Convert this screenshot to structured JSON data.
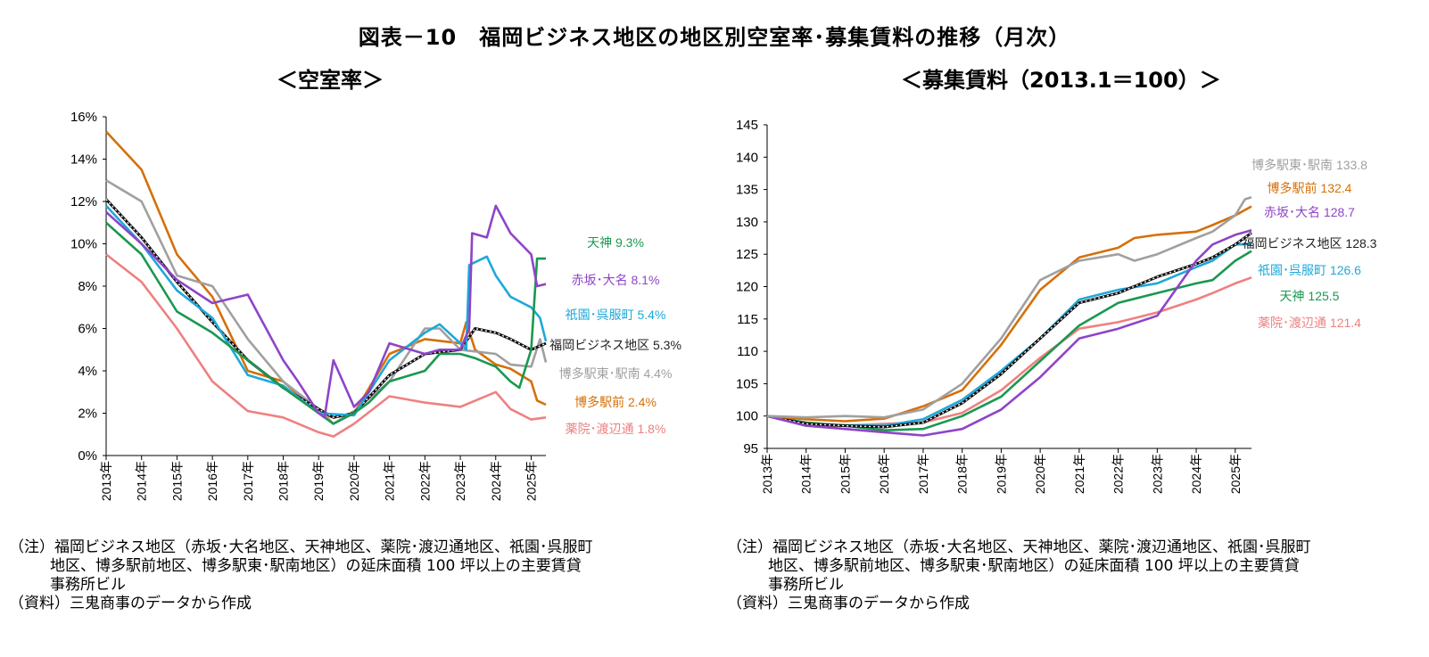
{
  "title": "図表－10　福岡ビジネス地区の地区別空室率･募集賃料の推移（月次）",
  "colors": {
    "tenjin": "#1a9850",
    "akasaka": "#8e44c8",
    "gion": "#1fa8d8",
    "fukuoka": "#111111",
    "hakataeki_higashi": "#a0a0a0",
    "hakataekimae": "#d4700a",
    "yakuin": "#ef8080",
    "grid": "#d9d9d9",
    "axis": "#000000"
  },
  "charts": [
    {
      "id": "vacancy",
      "subtitle": "＜空室率＞",
      "tick_labels": [
        "0%",
        "2%",
        "4%",
        "6%",
        "8%",
        "10%",
        "12%",
        "14%",
        "16%"
      ],
      "year_labels": [
        "2013年",
        "2014年",
        "2015年",
        "2016年",
        "2017年",
        "2018年",
        "2019年",
        "2020年",
        "2021年",
        "2022年",
        "2023年",
        "2024年",
        "2025年"
      ],
      "labels": [
        {
          "key": "tenjin",
          "text": "天神 9.3%"
        },
        {
          "key": "akasaka",
          "text": "赤坂･大名 8.1%"
        },
        {
          "key": "gion",
          "text": "祇園･呉服町 5.4%"
        },
        {
          "key": "fukuoka",
          "text": "福岡ビジネス地区 5.3%"
        },
        {
          "key": "hakataeki_higashi",
          "text": "博多駅東･駅南 4.4%"
        },
        {
          "key": "hakataekimae",
          "text": "博多駅前 2.4%"
        },
        {
          "key": "yakuin",
          "text": "薬院･渡辺通 1.8%"
        }
      ],
      "note_line1": "（注）福岡ビジネス地区（赤坂･大名地区、天神地区、薬院･渡辺通地区、祇園･呉服町",
      "note_line2": "地区、博多駅前地区、博多駅東･駅南地区）の延床面積 100 坪以上の主要賃貸",
      "note_line3": "事務所ビル",
      "source": "（資料）三鬼商事のデータから作成"
    },
    {
      "id": "rent",
      "subtitle": "＜募集賃料（2013.1＝100）＞",
      "tick_labels": [
        "95",
        "100",
        "105",
        "110",
        "115",
        "120",
        "125",
        "130",
        "135",
        "140",
        "145"
      ],
      "year_labels": [
        "2013年",
        "2014年",
        "2015年",
        "2016年",
        "2017年",
        "2018年",
        "2019年",
        "2020年",
        "2021年",
        "2022年",
        "2023年",
        "2024年",
        "2025年"
      ],
      "labels": [
        {
          "key": "hakataeki_higashi",
          "text": "博多駅東･駅南 133.8"
        },
        {
          "key": "hakataekimae",
          "text": "博多駅前 132.4"
        },
        {
          "key": "akasaka",
          "text": "赤坂･大名 128.7"
        },
        {
          "key": "fukuoka",
          "text": "福岡ビジネス地区 128.3"
        },
        {
          "key": "gion",
          "text": "祇園･呉服町 126.6"
        },
        {
          "key": "tenjin",
          "text": "天神 125.5"
        },
        {
          "key": "yakuin",
          "text": "薬院･渡辺通 121.4"
        }
      ],
      "note_line1": "（注）福岡ビジネス地区（赤坂･大名地区、天神地区、薬院･渡辺通地区、祇園･呉服町",
      "note_line2": "地区、博多駅前地区、博多駅東･駅南地区）の延床面積 100 坪以上の主要賃貸",
      "note_line3": "事務所ビル",
      "source": "（資料）三鬼商事のデータから作成"
    }
  ],
  "chart_data": [
    {
      "type": "line",
      "title": "＜空室率＞",
      "ylim": [
        0,
        16
      ],
      "y_unit": "%",
      "x_range": [
        "2013-01",
        "2025-06"
      ],
      "legend": "direct labels at right end of lines",
      "grid": false,
      "series": [
        {
          "name": "赤坂･大名",
          "key": "akasaka",
          "x": [
            "2013-01",
            "2014-01",
            "2015-01",
            "2016-01",
            "2017-01",
            "2018-01",
            "2018-06",
            "2019-01",
            "2019-03",
            "2019-06",
            "2020-01",
            "2020-06",
            "2021-01",
            "2022-01",
            "2022-06",
            "2023-01",
            "2023-04",
            "2023-05",
            "2023-10",
            "2024-01",
            "2024-06",
            "2025-01",
            "2025-03",
            "2025-06"
          ],
          "y": [
            11.5,
            10.0,
            8.3,
            7.2,
            7.6,
            4.5,
            3.5,
            2.0,
            1.8,
            4.5,
            2.3,
            3.0,
            5.3,
            4.8,
            5.0,
            5.0,
            6.0,
            10.5,
            10.3,
            11.8,
            10.5,
            9.5,
            8.0,
            8.1
          ]
        },
        {
          "name": "天神",
          "key": "tenjin",
          "x": [
            "2013-01",
            "2014-01",
            "2015-01",
            "2016-01",
            "2017-01",
            "2018-01",
            "2019-01",
            "2019-06",
            "2020-01",
            "2020-06",
            "2021-01",
            "2022-01",
            "2022-06",
            "2023-01",
            "2023-06",
            "2024-01",
            "2024-06",
            "2024-09",
            "2025-01",
            "2025-03",
            "2025-06"
          ],
          "y": [
            11.0,
            9.5,
            6.8,
            5.8,
            4.5,
            3.2,
            2.0,
            1.5,
            2.0,
            2.5,
            3.5,
            4.0,
            4.8,
            4.8,
            4.6,
            4.2,
            3.5,
            3.2,
            5.0,
            9.3,
            9.3
          ]
        },
        {
          "name": "祇園･呉服町",
          "key": "gion",
          "x": [
            "2013-01",
            "2014-01",
            "2015-01",
            "2016-01",
            "2017-01",
            "2018-01",
            "2019-01",
            "2020-01",
            "2021-01",
            "2022-01",
            "2022-06",
            "2023-01",
            "2023-03",
            "2023-04",
            "2023-10",
            "2024-01",
            "2024-06",
            "2025-01",
            "2025-04",
            "2025-06"
          ],
          "y": [
            11.8,
            10.0,
            7.8,
            6.5,
            3.8,
            3.3,
            2.0,
            1.9,
            4.5,
            5.8,
            6.2,
            5.3,
            5.0,
            9.0,
            9.4,
            8.5,
            7.5,
            7.0,
            6.5,
            5.4
          ]
        },
        {
          "name": "福岡ビジネス地区",
          "key": "fukuoka",
          "x": [
            "2013-01",
            "2014-01",
            "2015-01",
            "2016-01",
            "2017-01",
            "2018-01",
            "2019-01",
            "2019-06",
            "2020-01",
            "2021-01",
            "2022-01",
            "2023-01",
            "2023-06",
            "2024-01",
            "2024-06",
            "2025-01",
            "2025-06"
          ],
          "y": [
            12.1,
            10.3,
            8.2,
            6.3,
            4.5,
            3.2,
            2.2,
            1.8,
            2.0,
            3.8,
            4.8,
            5.0,
            6.0,
            5.8,
            5.5,
            5.0,
            5.3
          ]
        },
        {
          "name": "博多駅東･駅南",
          "key": "hakataeki_higashi",
          "x": [
            "2013-01",
            "2014-01",
            "2015-01",
            "2016-01",
            "2017-01",
            "2018-01",
            "2019-01",
            "2019-06",
            "2020-01",
            "2021-01",
            "2022-01",
            "2022-06",
            "2023-01",
            "2024-01",
            "2024-06",
            "2025-01",
            "2025-04",
            "2025-06"
          ],
          "y": [
            13.0,
            12.0,
            8.5,
            8.0,
            5.5,
            3.5,
            2.2,
            1.5,
            2.1,
            3.5,
            6.0,
            6.0,
            5.0,
            4.8,
            4.3,
            4.2,
            5.5,
            4.4
          ]
        },
        {
          "name": "博多駅前",
          "key": "hakataekimae",
          "x": [
            "2013-01",
            "2014-01",
            "2015-01",
            "2016-01",
            "2017-01",
            "2018-01",
            "2019-01",
            "2019-06",
            "2020-01",
            "2021-01",
            "2022-01",
            "2023-01",
            "2023-03",
            "2023-06",
            "2024-01",
            "2024-06",
            "2025-01",
            "2025-03",
            "2025-06"
          ],
          "y": [
            15.3,
            13.5,
            9.5,
            7.5,
            4.0,
            3.5,
            2.0,
            1.8,
            2.0,
            4.8,
            5.5,
            5.3,
            6.3,
            5.0,
            4.3,
            4.1,
            3.5,
            2.6,
            2.4
          ]
        },
        {
          "name": "薬院･渡辺通",
          "key": "yakuin",
          "x": [
            "2013-01",
            "2014-01",
            "2015-01",
            "2016-01",
            "2017-01",
            "2018-01",
            "2019-01",
            "2019-06",
            "2020-01",
            "2021-01",
            "2022-01",
            "2023-01",
            "2024-01",
            "2024-06",
            "2025-01",
            "2025-06"
          ],
          "y": [
            9.5,
            8.2,
            6.0,
            3.5,
            2.1,
            1.8,
            1.1,
            0.9,
            1.5,
            2.8,
            2.5,
            2.3,
            3.0,
            2.2,
            1.7,
            1.8
          ]
        }
      ]
    },
    {
      "type": "line",
      "title": "＜募集賃料（2013.1＝100）＞",
      "ylim": [
        95,
        145
      ],
      "x_range": [
        "2013-01",
        "2025-06"
      ],
      "legend": "direct labels at right end of lines",
      "grid": false,
      "series": [
        {
          "name": "博多駅東･駅南",
          "key": "hakataeki_higashi",
          "x": [
            "2013-01",
            "2014-01",
            "2015-01",
            "2016-01",
            "2017-01",
            "2018-01",
            "2019-01",
            "2020-01",
            "2021-01",
            "2022-01",
            "2022-06",
            "2023-01",
            "2024-01",
            "2024-06",
            "2025-01",
            "2025-04",
            "2025-06"
          ],
          "y": [
            100,
            99.8,
            100.0,
            99.8,
            101.0,
            105.0,
            112.0,
            121.0,
            124.0,
            125.0,
            124.0,
            125.0,
            127.5,
            128.5,
            131.0,
            133.5,
            133.8
          ]
        },
        {
          "name": "博多駅前",
          "key": "hakataekimae",
          "x": [
            "2013-01",
            "2014-01",
            "2015-01",
            "2016-01",
            "2017-01",
            "2018-01",
            "2019-01",
            "2020-01",
            "2021-01",
            "2022-01",
            "2022-06",
            "2023-01",
            "2024-01",
            "2024-06",
            "2025-01",
            "2025-06"
          ],
          "y": [
            100,
            99.5,
            99.2,
            99.6,
            101.5,
            104.0,
            111.0,
            119.5,
            124.5,
            126.0,
            127.5,
            128.0,
            128.5,
            129.5,
            131.0,
            132.4
          ]
        },
        {
          "name": "赤坂･大名",
          "key": "akasaka",
          "x": [
            "2013-01",
            "2014-01",
            "2015-01",
            "2016-01",
            "2017-01",
            "2018-01",
            "2019-01",
            "2020-01",
            "2021-01",
            "2022-01",
            "2023-01",
            "2024-01",
            "2024-06",
            "2025-01",
            "2025-06"
          ],
          "y": [
            100,
            98.5,
            98.0,
            97.5,
            97.0,
            98.0,
            101.0,
            106.0,
            112.0,
            113.5,
            115.5,
            124.0,
            126.5,
            128.0,
            128.7
          ]
        },
        {
          "name": "福岡ビジネス地区",
          "key": "fukuoka",
          "x": [
            "2013-01",
            "2014-01",
            "2015-01",
            "2016-01",
            "2017-01",
            "2018-01",
            "2019-01",
            "2020-01",
            "2021-01",
            "2022-01",
            "2023-01",
            "2024-01",
            "2024-06",
            "2025-01",
            "2025-06"
          ],
          "y": [
            100,
            98.8,
            98.5,
            98.3,
            99.0,
            102.0,
            106.5,
            112.0,
            117.5,
            119.0,
            121.5,
            123.5,
            124.5,
            126.5,
            128.3
          ]
        },
        {
          "name": "祇園･呉服町",
          "key": "gion",
          "x": [
            "2013-01",
            "2014-01",
            "2015-01",
            "2016-01",
            "2017-01",
            "2018-01",
            "2019-01",
            "2020-01",
            "2021-01",
            "2022-01",
            "2023-01",
            "2024-01",
            "2024-06",
            "2025-01",
            "2025-06"
          ],
          "y": [
            100,
            98.8,
            98.6,
            98.5,
            99.5,
            102.5,
            107.0,
            112.0,
            118.0,
            119.5,
            120.5,
            123.0,
            124.0,
            126.5,
            126.6
          ]
        },
        {
          "name": "天神",
          "key": "tenjin",
          "x": [
            "2013-01",
            "2014-01",
            "2015-01",
            "2016-01",
            "2017-01",
            "2018-01",
            "2019-01",
            "2020-01",
            "2021-01",
            "2022-01",
            "2023-01",
            "2024-01",
            "2024-06",
            "2025-01",
            "2025-06"
          ],
          "y": [
            100,
            99.0,
            98.5,
            97.8,
            98.0,
            100.0,
            103.0,
            108.5,
            114.0,
            117.5,
            119.0,
            120.5,
            121.0,
            124.0,
            125.5
          ]
        },
        {
          "name": "薬院･渡辺通",
          "key": "yakuin",
          "x": [
            "2013-01",
            "2014-01",
            "2015-01",
            "2016-01",
            "2017-01",
            "2018-01",
            "2019-01",
            "2020-01",
            "2021-01",
            "2022-01",
            "2023-01",
            "2024-01",
            "2024-06",
            "2025-01",
            "2025-06"
          ],
          "y": [
            100,
            98.5,
            98.5,
            98.8,
            99.0,
            100.5,
            104.0,
            109.0,
            113.5,
            114.5,
            116.0,
            118.0,
            119.0,
            120.5,
            121.4
          ]
        }
      ]
    }
  ]
}
